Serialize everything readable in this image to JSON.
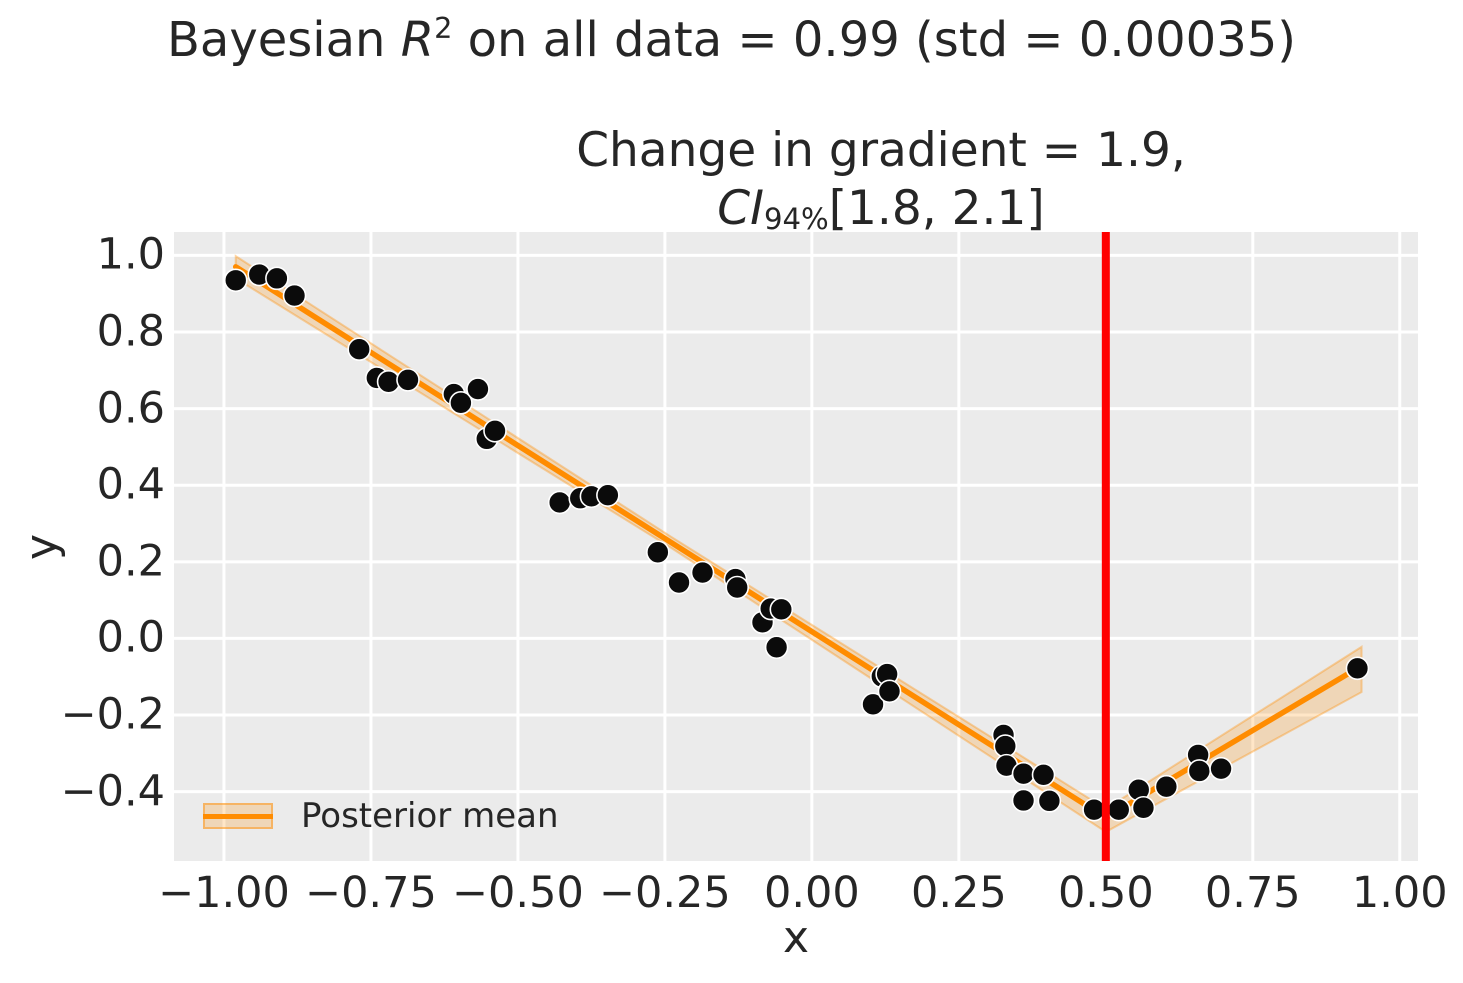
{
  "figure": {
    "title": {
      "prefix": "Bayesian ",
      "math_r": "R",
      "sup": "2",
      "rest": " on all data = 0.99 (std = 0.00035)"
    },
    "annotation": {
      "line1": "Change in gradient = 1.9,",
      "ci_prefix": "CI",
      "ci_sub": "94%",
      "ci_rest": "[1.8, 2.1]"
    },
    "xlabel": "x",
    "ylabel": "y"
  },
  "legend": {
    "label": "Posterior mean",
    "position": "lower left"
  },
  "colors": {
    "figure_bg": "#ffffff",
    "plot_bg": "#ebebeb",
    "grid": "#ffffff",
    "scatter": "#0b0b0b",
    "scatter_edge": "#ffffff",
    "posterior_line": "#ff8c00",
    "posterior_band": "#ff8c00",
    "changepoint_line": "#ff0000",
    "text": "#262626"
  },
  "chart_data": {
    "type": "scatter",
    "title": "Bayesian R^2 on all data = 0.99 (std = 0.00035)",
    "annotation": "Change in gradient = 1.9, CI_94%[1.8, 2.1]",
    "xlabel": "x",
    "ylabel": "y",
    "xlim": [
      -1.085,
      1.031
    ],
    "ylim": [
      -0.581,
      1.061
    ],
    "grid": true,
    "legend_position": "lower left",
    "xticks": {
      "values": [
        -1.0,
        -0.75,
        -0.5,
        -0.25,
        0.0,
        0.25,
        0.5,
        0.75,
        1.0
      ],
      "labels": [
        "−1.00",
        "−0.75",
        "−0.50",
        "−0.25",
        "0.00",
        "0.25",
        "0.50",
        "0.75",
        "1.00"
      ]
    },
    "yticks": {
      "values": [
        1.0,
        0.8,
        0.6,
        0.4,
        0.2,
        0.0,
        -0.2,
        -0.4
      ],
      "labels": [
        "1.0",
        "0.8",
        "0.6",
        "0.4",
        "0.2",
        "0.0",
        "−0.2",
        "−0.4"
      ]
    },
    "points": [
      [
        -0.98,
        0.935
      ],
      [
        -0.94,
        0.95
      ],
      [
        -0.91,
        0.94
      ],
      [
        -0.88,
        0.895
      ],
      [
        -0.77,
        0.755
      ],
      [
        -0.74,
        0.68
      ],
      [
        -0.72,
        0.67
      ],
      [
        -0.687,
        0.675
      ],
      [
        -0.609,
        0.638
      ],
      [
        -0.597,
        0.615
      ],
      [
        -0.568,
        0.651
      ],
      [
        -0.553,
        0.521
      ],
      [
        -0.539,
        0.542
      ],
      [
        -0.429,
        0.355
      ],
      [
        -0.394,
        0.366
      ],
      [
        -0.375,
        0.371
      ],
      [
        -0.347,
        0.374
      ],
      [
        -0.262,
        0.225
      ],
      [
        -0.226,
        0.146
      ],
      [
        -0.186,
        0.172
      ],
      [
        -0.13,
        0.155
      ],
      [
        -0.127,
        0.133
      ],
      [
        -0.084,
        0.042
      ],
      [
        -0.07,
        0.078
      ],
      [
        -0.052,
        0.076
      ],
      [
        -0.06,
        -0.023
      ],
      [
        0.104,
        -0.172
      ],
      [
        0.119,
        -0.099
      ],
      [
        0.128,
        -0.093
      ],
      [
        0.132,
        -0.138
      ],
      [
        0.326,
        -0.252
      ],
      [
        0.329,
        -0.281
      ],
      [
        0.331,
        -0.332
      ],
      [
        0.36,
        -0.353
      ],
      [
        0.394,
        -0.356
      ],
      [
        0.36,
        -0.423
      ],
      [
        0.404,
        -0.424
      ],
      [
        0.48,
        -0.447
      ],
      [
        0.522,
        -0.447
      ],
      [
        0.556,
        -0.395
      ],
      [
        0.564,
        -0.442
      ],
      [
        0.603,
        -0.387
      ],
      [
        0.657,
        -0.304
      ],
      [
        0.659,
        -0.346
      ],
      [
        0.696,
        -0.34
      ],
      [
        0.928,
        -0.078
      ]
    ],
    "posterior_mean_line": [
      [
        -0.98,
        0.97
      ],
      [
        0.5,
        -0.468
      ],
      [
        0.93,
        -0.076
      ]
    ],
    "band_left": [
      [
        -0.98,
        0.998
      ],
      [
        -0.24,
        0.266
      ],
      [
        0.5,
        -0.445
      ],
      [
        0.5,
        -0.505
      ],
      [
        -0.24,
        0.237
      ],
      [
        -0.98,
        0.94
      ]
    ],
    "band_right": [
      [
        0.5,
        -0.445
      ],
      [
        0.935,
        -0.022
      ],
      [
        0.935,
        -0.14
      ],
      [
        0.5,
        -0.505
      ]
    ],
    "changepoint_x": 0.5
  }
}
